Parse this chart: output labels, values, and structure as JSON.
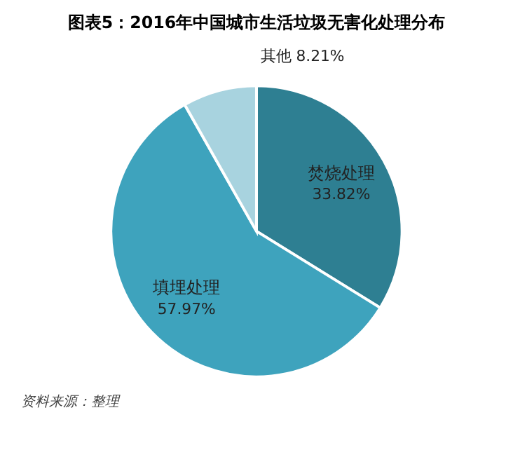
{
  "chart_data": {
    "type": "pie",
    "title": "图表5：2016年中国城市生活垃圾无害化处理分布",
    "categories": [
      "焚烧处理",
      "填埋处理",
      "其他"
    ],
    "values": [
      33.82,
      57.97,
      8.21
    ],
    "colors": [
      "#2e7f92",
      "#3ea3bd",
      "#a8d3df"
    ],
    "value_labels": [
      "33.82%",
      "57.97%",
      "8.21%"
    ],
    "legend": false,
    "annotations": [
      "资料来源：整理"
    ]
  }
}
